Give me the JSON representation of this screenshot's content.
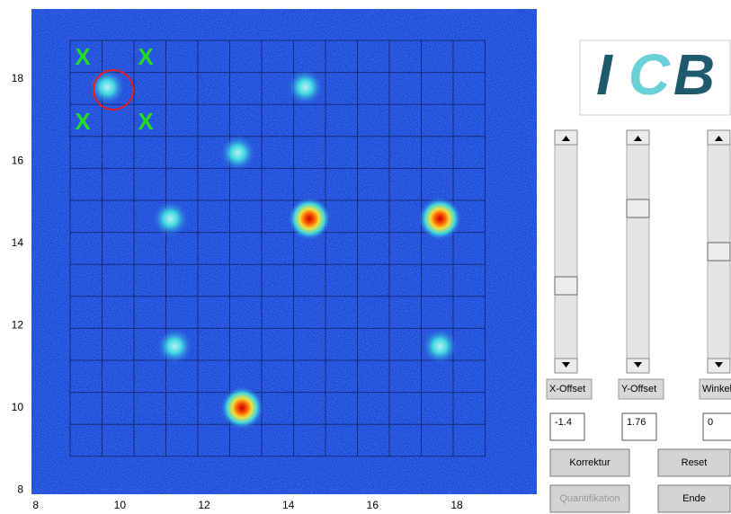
{
  "plot": {
    "xticks": [
      8,
      10,
      12,
      14,
      16,
      18
    ],
    "yticks": [
      8,
      10,
      12,
      14,
      16,
      18
    ],
    "xlim": [
      7.9,
      19.9
    ],
    "ylim": [
      7.9,
      19.7
    ],
    "spots": [
      {
        "x": 9.7,
        "y": 17.8,
        "peak": 0.5
      },
      {
        "x": 14.4,
        "y": 17.8,
        "peak": 0.5
      },
      {
        "x": 12.8,
        "y": 16.2,
        "peak": 0.5
      },
      {
        "x": 11.2,
        "y": 14.6,
        "peak": 0.5
      },
      {
        "x": 14.5,
        "y": 14.6,
        "peak": 1
      },
      {
        "x": 17.6,
        "y": 14.6,
        "peak": 0.9
      },
      {
        "x": 11.3,
        "y": 11.5,
        "peak": 0.5
      },
      {
        "x": 17.6,
        "y": 11.5,
        "peak": 0.5
      },
      {
        "x": 12.9,
        "y": 10,
        "peak": 1
      }
    ],
    "markers": [
      "X",
      "X",
      "X",
      "X"
    ]
  },
  "logo": [
    "I",
    "C",
    "B"
  ],
  "controls": {
    "sliders": [
      {
        "label": "X-Offset",
        "value": -1.4
      },
      {
        "label": "Y-Offset",
        "value": 1.76
      },
      {
        "label": "Winkel",
        "value": 0
      }
    ],
    "buttons": [
      {
        "label": "Korrektur",
        "enabled": true
      },
      {
        "label": "Reset",
        "enabled": true
      },
      {
        "label": "Quantifikation",
        "enabled": false
      },
      {
        "label": "Ende",
        "enabled": true
      }
    ]
  }
}
